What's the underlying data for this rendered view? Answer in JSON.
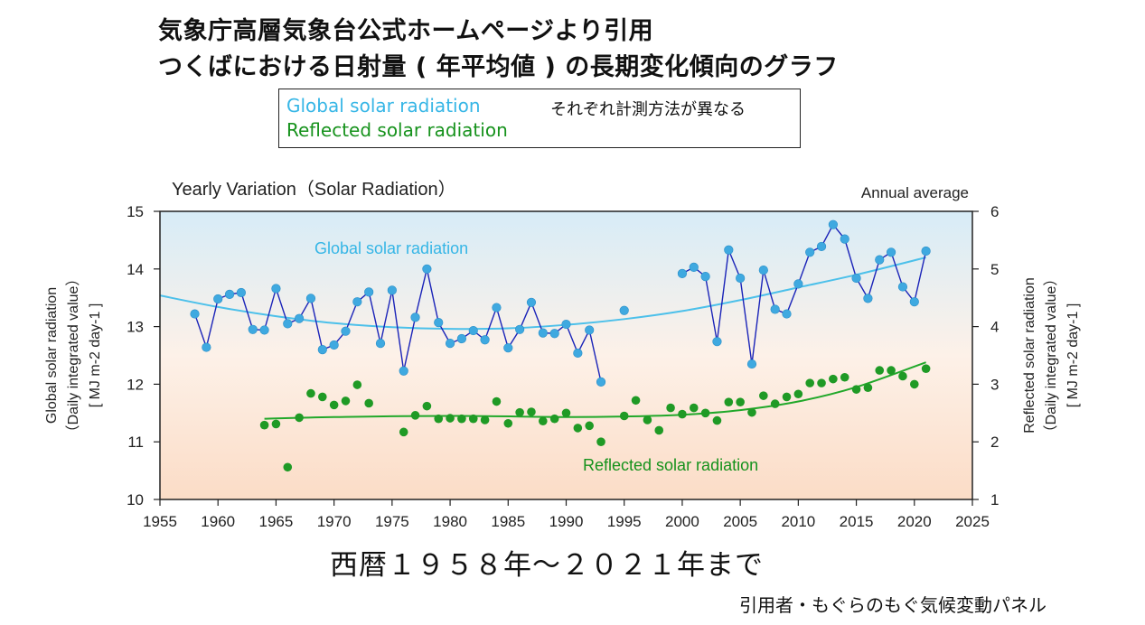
{
  "header": {
    "title_line1": "気象庁高層気象台公式ホームページより引用",
    "title_line2": "つくばにおける日射量 ( 年平均値 ) の長期変化傾向のグラフ"
  },
  "legend_box": {
    "global_label": "Global solar radiation",
    "reflected_label": "Reflected solar radiation",
    "note": "それぞれ計測方法が異なる"
  },
  "footer": {
    "period": "西暦１９５８年〜２０２１年まで",
    "credit": "引用者・もぐらのもぐ気候変動パネル"
  },
  "colors": {
    "global_points": "#3fa9e0",
    "global_line": "#1a23b8",
    "global_trend": "#4cc0ea",
    "reflected_points": "#1f9a25",
    "reflected_trend": "#21a82a",
    "bg_top": "#d7ecf7",
    "bg_bottom": "#fbdcc6"
  },
  "chart_data": {
    "type": "line",
    "title": "Yearly Variation（Solar Radiation）",
    "annotation": "Annual average",
    "xlabel": "",
    "xlim": [
      1955,
      2025
    ],
    "xticks": [
      1955,
      1960,
      1965,
      1970,
      1975,
      1980,
      1985,
      1990,
      1995,
      2000,
      2005,
      2010,
      2015,
      2020,
      2025
    ],
    "ylim_left": [
      10,
      15
    ],
    "yticks_left": [
      10,
      11,
      12,
      13,
      14,
      15
    ],
    "ylabel_left": [
      "Global solar radiation",
      "（Daily integrated value）",
      "[ MJ m-2 day-1 ]"
    ],
    "ylim_right": [
      1,
      6
    ],
    "yticks_right": [
      1,
      2,
      3,
      4,
      5,
      6
    ],
    "ylabel_right": [
      "Reflected solar radiation",
      "（Daily integrated value）",
      "[ MJ m-2 day-1 ]"
    ],
    "grid": false,
    "series": [
      {
        "name": "Global solar radiation",
        "axis": "left",
        "segments": [
          {
            "x": [
              1958,
              1959,
              1960,
              1961,
              1962,
              1963,
              1964,
              1965,
              1966,
              1967,
              1968,
              1969,
              1970,
              1971,
              1972,
              1973,
              1974,
              1975,
              1976,
              1977,
              1978,
              1979,
              1980,
              1981,
              1982,
              1983,
              1984,
              1985,
              1986,
              1987,
              1988,
              1989,
              1990,
              1991,
              1992,
              1993
            ],
            "y": [
              13.22,
              12.64,
              13.48,
              13.56,
              13.59,
              12.95,
              12.94,
              13.66,
              13.05,
              13.14,
              13.49,
              12.6,
              12.68,
              12.92,
              13.43,
              13.6,
              12.71,
              13.63,
              12.23,
              13.16,
              14.0,
              13.07,
              12.71,
              12.79,
              12.93,
              12.77,
              13.33,
              12.63,
              12.95,
              13.42,
              12.89,
              12.88,
              13.04,
              12.54,
              12.94,
              12.04
            ]
          },
          {
            "x": [
              2000,
              2001,
              2002,
              2003,
              2004,
              2005,
              2006,
              2007,
              2008,
              2009,
              2010,
              2011,
              2012,
              2013,
              2014,
              2015,
              2016,
              2017,
              2018,
              2019,
              2020,
              2021
            ],
            "y": [
              13.92,
              14.03,
              13.87,
              12.74,
              14.33,
              13.84,
              12.35,
              13.98,
              13.3,
              13.22,
              13.74,
              14.29,
              14.39,
              14.77,
              14.52,
              13.84,
              13.49,
              14.16,
              14.29,
              13.69,
              13.43,
              14.31
            ]
          }
        ],
        "isolated_points": {
          "x": [
            1995
          ],
          "y": [
            13.28
          ]
        },
        "trend": {
          "x": [
            1955,
            1960,
            1965,
            1970,
            1975,
            1980,
            1985,
            1990,
            1995,
            2000,
            2005,
            2010,
            2015,
            2021
          ],
          "y": [
            13.54,
            13.34,
            13.18,
            13.06,
            12.99,
            12.96,
            12.97,
            13.03,
            13.13,
            13.27,
            13.46,
            13.68,
            13.9,
            14.2
          ]
        }
      },
      {
        "name": "Reflected solar radiation",
        "axis": "right",
        "points": {
          "x": [
            1964,
            1965,
            1966,
            1967,
            1968,
            1969,
            1970,
            1971,
            1972,
            1973,
            1976,
            1977,
            1978,
            1979,
            1980,
            1981,
            1982,
            1983,
            1984,
            1985,
            1986,
            1987,
            1988,
            1989,
            1990,
            1991,
            1992,
            1993,
            1995,
            1996,
            1997,
            1998,
            1999,
            2000,
            2001,
            2002,
            2003,
            2004,
            2005,
            2006,
            2007,
            2008,
            2009,
            2010,
            2011,
            2012,
            2013,
            2014,
            2015,
            2016,
            2017,
            2018,
            2019,
            2020,
            2021
          ],
          "y": [
            2.29,
            2.31,
            1.56,
            2.42,
            2.84,
            2.78,
            2.64,
            2.71,
            2.99,
            2.67,
            2.17,
            2.46,
            2.62,
            2.4,
            2.41,
            2.4,
            2.4,
            2.38,
            2.7,
            2.32,
            2.51,
            2.52,
            2.36,
            2.4,
            2.5,
            2.24,
            2.28,
            2.0,
            2.45,
            2.72,
            2.38,
            2.2,
            2.59,
            2.48,
            2.59,
            2.5,
            2.37,
            2.69,
            2.69,
            2.51,
            2.8,
            2.66,
            2.78,
            2.83,
            3.02,
            3.02,
            3.09,
            3.12,
            2.91,
            2.94,
            3.24,
            3.24,
            3.14,
            3.0,
            3.27
          ]
        },
        "trend": {
          "x": [
            1964,
            1970,
            1980,
            1990,
            1995,
            2000,
            2005,
            2010,
            2015,
            2021
          ],
          "y": [
            2.4,
            2.43,
            2.45,
            2.43,
            2.44,
            2.47,
            2.55,
            2.7,
            2.95,
            3.38
          ]
        }
      }
    ],
    "series_labels": {
      "global": "Global solar radiation",
      "reflected": "Reflected solar radiation"
    }
  }
}
